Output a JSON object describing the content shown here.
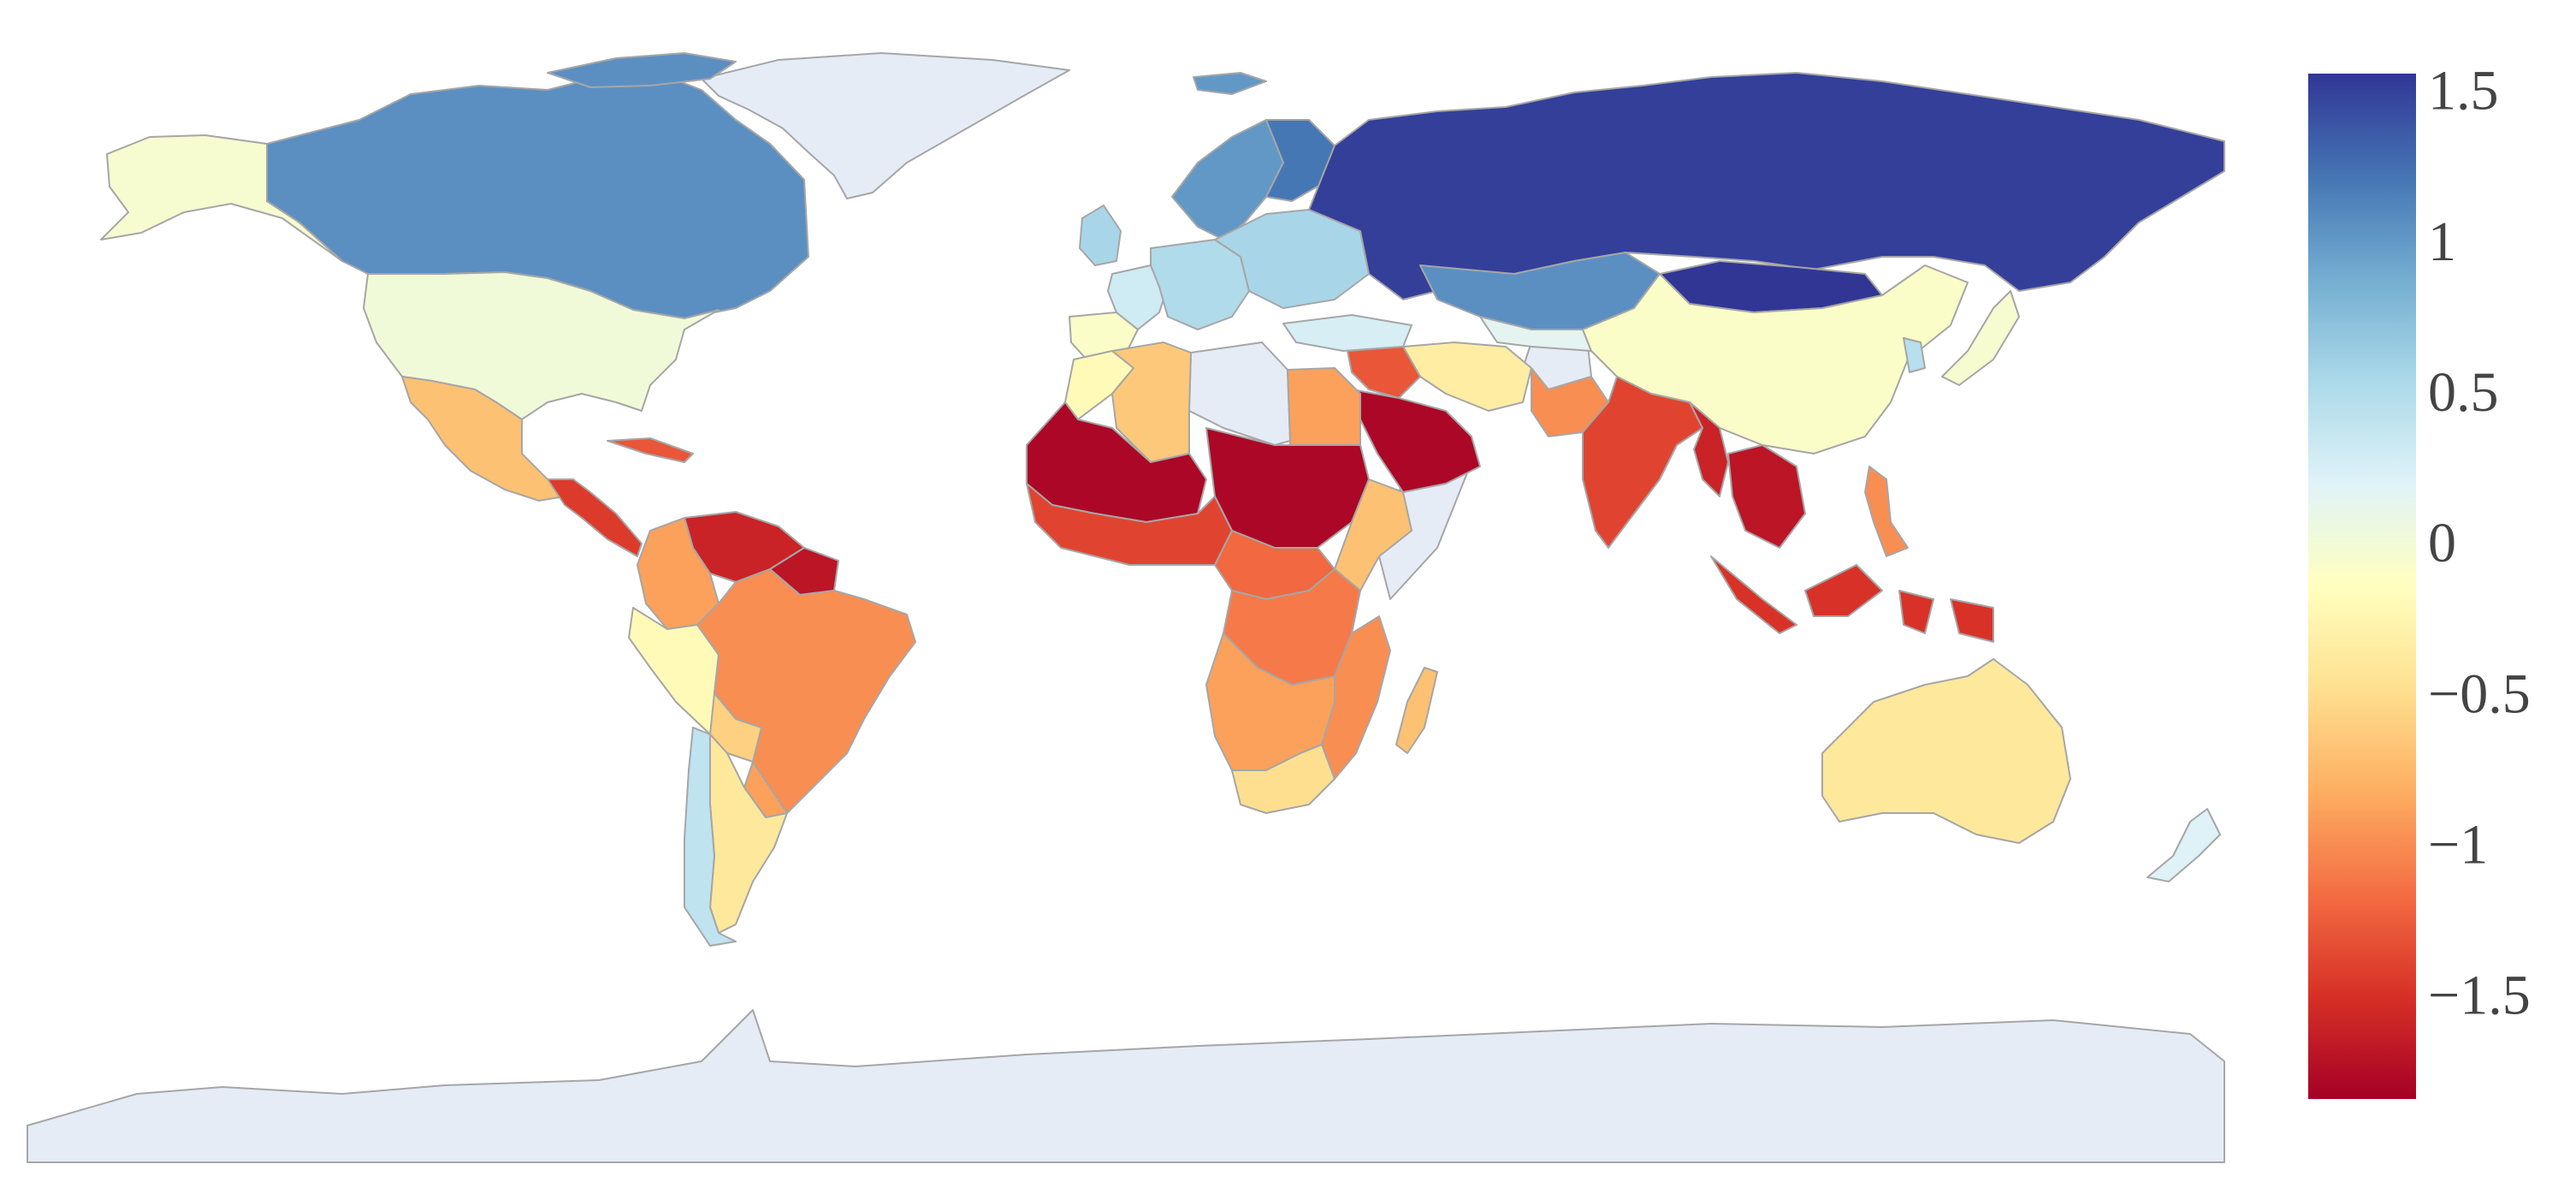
{
  "map": {
    "nodata_color": "#e6ecf6",
    "border_color": "#a6a6a6",
    "colorscale": [
      "#a50026",
      "#d73027",
      "#f46d43",
      "#fdae61",
      "#fee090",
      "#ffffbf",
      "#e0f3f8",
      "#abd9e9",
      "#74add1",
      "#4575b4",
      "#313695"
    ],
    "value_range": [
      -1.85,
      1.55
    ],
    "countries": {
      "alaska": -0.05,
      "canada": 1.05,
      "usa": 0.0,
      "mexico": -0.7,
      "central_america": -1.45,
      "cuba": -1.3,
      "colombia": -0.9,
      "venezuela": -1.6,
      "guyana": -1.7,
      "peru": -0.2,
      "brazil": -1.0,
      "bolivia": -0.6,
      "paraguay": -0.9,
      "argentina": -0.4,
      "chile": 0.4,
      "scandinavia": 1.0,
      "finland": 1.2,
      "uk_ireland": 0.55,
      "iberia": -0.1,
      "france": 0.3,
      "central_europe": 0.5,
      "eastern_europe": 0.55,
      "russia": 1.5,
      "kazakhstan": 1.05,
      "mongolia": 1.6,
      "china": -0.1,
      "japan": -0.05,
      "korea": 0.45,
      "turkey": 0.25,
      "iran": -0.35,
      "middle_east": -1.3,
      "saudi_arabia": -1.8,
      "central_asia": 0.15,
      "pakistan": -1.0,
      "india": -1.4,
      "bangladesh_myanmar": -1.6,
      "mainland_se_asia": -1.7,
      "indonesia": -1.5,
      "philippines": -1.0,
      "australia": -0.4,
      "new_zealand": 0.2,
      "morocco": -0.2,
      "algeria": -0.65,
      "egypt": -0.9,
      "mali_niger_mauritania": -1.8,
      "chad_sudan": -1.8,
      "west_africa": -1.4,
      "central_africa": -1.2,
      "ethiopia": -0.7,
      "congo": -1.1,
      "angola_zambia": -0.9,
      "tanzania_mozambique": -1.0,
      "madagascar": -0.7,
      "south_africa": -0.5
    }
  },
  "colorbar": {
    "ticks": [
      {
        "value": 1.5,
        "label": "1.5"
      },
      {
        "value": 1,
        "label": "1"
      },
      {
        "value": 0.5,
        "label": "0.5"
      },
      {
        "value": 0,
        "label": "0"
      },
      {
        "value": -0.5,
        "label": "−0.5"
      },
      {
        "value": -1,
        "label": "−1"
      },
      {
        "value": -1.5,
        "label": "−1.5"
      }
    ]
  }
}
